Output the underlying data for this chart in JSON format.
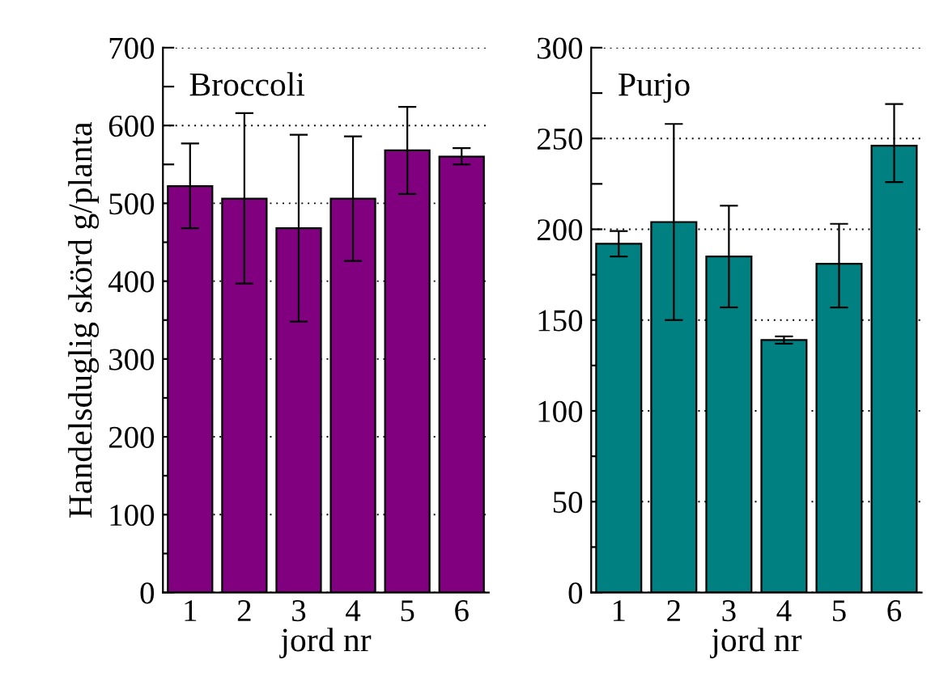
{
  "chart_data": [
    {
      "type": "bar",
      "title": "Broccoli",
      "ylabel": "Handelsduglig skörd g/planta",
      "xlabel": "jord nr",
      "categories": [
        "1",
        "2",
        "3",
        "4",
        "5",
        "6"
      ],
      "values": [
        522,
        506,
        468,
        506,
        568,
        560
      ],
      "color": "#800080",
      "errors": [
        [
          468,
          577
        ],
        [
          397,
          616
        ],
        [
          348,
          588
        ],
        [
          426,
          586
        ],
        [
          512,
          624
        ],
        [
          550,
          571
        ]
      ],
      "ylim": [
        0,
        700
      ],
      "yticks": [
        0,
        {
          "value": 50,
          "label": null
        },
        100,
        {
          "value": 150,
          "label": null
        },
        200,
        {
          "value": 250,
          "label": null
        },
        300,
        {
          "value": 350,
          "label": null
        },
        400,
        {
          "value": 450,
          "label": null
        },
        500,
        {
          "value": 550,
          "label": null
        },
        600,
        {
          "value": 650,
          "label": null
        },
        700
      ],
      "grid": "y"
    },
    {
      "type": "bar",
      "title": "Purjo",
      "xlabel": "jord nr",
      "categories": [
        "1",
        "2",
        "3",
        "4",
        "5",
        "6"
      ],
      "values": [
        192,
        204,
        185,
        139,
        181,
        246
      ],
      "color": "#008080",
      "errors": [
        [
          185,
          199
        ],
        [
          150,
          258
        ],
        [
          157,
          213
        ],
        [
          137,
          141
        ],
        [
          157,
          203
        ],
        [
          226,
          269
        ]
      ],
      "ylim": [
        0,
        300
      ],
      "yticks": [
        0,
        {
          "value": 25,
          "label": null
        },
        50,
        {
          "value": 75,
          "label": null
        },
        100,
        {
          "value": 125,
          "label": null
        },
        150,
        {
          "value": 175,
          "label": null
        },
        200,
        {
          "value": 225,
          "label": null
        },
        250,
        {
          "value": 275,
          "label": null
        },
        300
      ],
      "grid": "y"
    }
  ]
}
